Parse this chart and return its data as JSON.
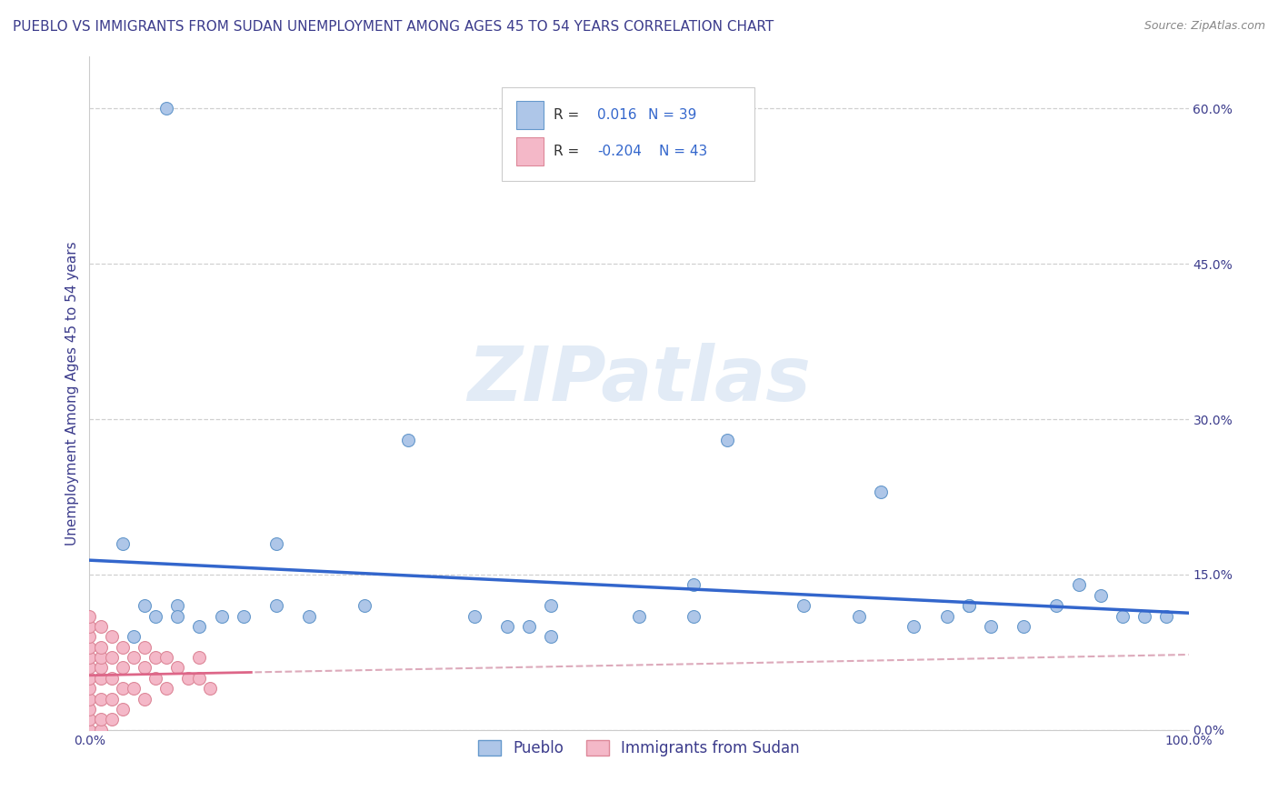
{
  "title": "PUEBLO VS IMMIGRANTS FROM SUDAN UNEMPLOYMENT AMONG AGES 45 TO 54 YEARS CORRELATION CHART",
  "source": "Source: ZipAtlas.com",
  "ylabel": "Unemployment Among Ages 45 to 54 years",
  "xlim": [
    0,
    100
  ],
  "ylim": [
    0,
    65
  ],
  "xticks": [
    0,
    20,
    40,
    60,
    80,
    100
  ],
  "xticklabels": [
    "0.0%",
    "",
    "",
    "",
    "",
    "100.0%"
  ],
  "yticks": [
    0,
    15,
    30,
    45,
    60
  ],
  "yticklabels": [
    "0.0%",
    "15.0%",
    "30.0%",
    "45.0%",
    "60.0%"
  ],
  "title_color": "#3c3c8c",
  "axis_label_color": "#3c3c8c",
  "tick_color": "#3c3c8c",
  "grid_color": "#d0d0d0",
  "background_color": "#ffffff",
  "watermark_text": "ZIPatlas",
  "pueblo_color": "#aec6e8",
  "pueblo_edge_color": "#6699cc",
  "sudan_color": "#f4b8c8",
  "sudan_edge_color": "#dd8899",
  "pueblo_line_color": "#3366cc",
  "sudan_line_solid_color": "#dd6688",
  "sudan_line_dash_color": "#ddaabb",
  "pueblo_R": 0.016,
  "pueblo_N": 39,
  "sudan_R": -0.204,
  "sudan_N": 43,
  "pueblo_x": [
    7,
    3,
    5,
    6,
    8,
    4,
    8,
    10,
    12,
    14,
    17,
    17,
    20,
    25,
    29,
    35,
    40,
    42,
    42,
    50,
    55,
    58,
    65,
    70,
    72,
    75,
    78,
    80,
    82,
    85,
    88,
    90,
    92,
    94,
    96,
    98,
    38,
    55,
    80
  ],
  "pueblo_y": [
    60,
    18,
    12,
    11,
    12,
    9,
    11,
    10,
    11,
    11,
    18,
    12,
    11,
    12,
    28,
    11,
    10,
    12,
    9,
    11,
    14,
    28,
    12,
    11,
    23,
    10,
    11,
    12,
    10,
    10,
    12,
    14,
    13,
    11,
    11,
    11,
    10,
    11,
    12
  ],
  "sudan_x": [
    0,
    0,
    0,
    0,
    0,
    0,
    0,
    0,
    0,
    0,
    0,
    0,
    1,
    1,
    1,
    1,
    1,
    1,
    1,
    1,
    2,
    2,
    2,
    2,
    2,
    3,
    3,
    3,
    3,
    4,
    4,
    5,
    5,
    5,
    6,
    6,
    7,
    7,
    8,
    9,
    10,
    10,
    11
  ],
  "sudan_y": [
    0,
    1,
    2,
    3,
    4,
    5,
    6,
    7,
    8,
    9,
    10,
    11,
    0,
    1,
    3,
    5,
    6,
    7,
    8,
    10,
    1,
    3,
    5,
    7,
    9,
    2,
    4,
    6,
    8,
    4,
    7,
    3,
    6,
    8,
    5,
    7,
    4,
    7,
    6,
    5,
    5,
    7,
    4
  ]
}
